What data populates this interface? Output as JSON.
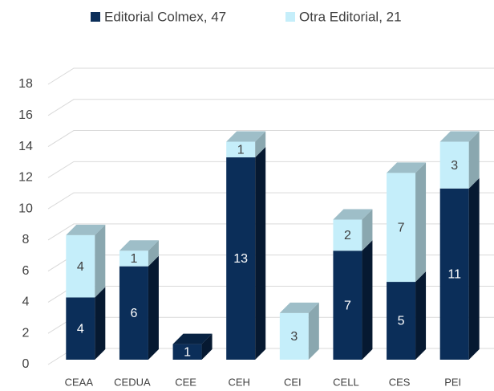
{
  "chart_data": {
    "type": "bar3d_stacked",
    "categories": [
      "CEAA",
      "CEDUA",
      "CEE",
      "CEH",
      "CEI",
      "CELL",
      "CES",
      "PEI"
    ],
    "series": [
      {
        "name": "Editorial Colmex, 47",
        "color": "#0b2e59",
        "values": [
          4,
          6,
          1,
          13,
          null,
          7,
          5,
          11
        ]
      },
      {
        "name": "Otra Editorial, 21",
        "color": "#c5eefa",
        "values": [
          4,
          1,
          null,
          1,
          3,
          2,
          7,
          3
        ]
      }
    ],
    "ylim": [
      0,
      18
    ],
    "yticks": [
      0,
      2,
      4,
      6,
      8,
      10,
      12,
      14,
      16,
      18
    ],
    "grid": true,
    "legend": "top"
  }
}
